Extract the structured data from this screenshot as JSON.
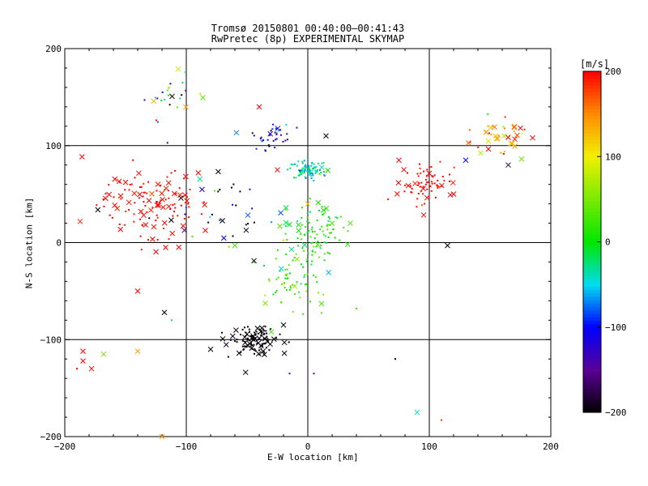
{
  "title": "Tromsø 20150801 00:40:00–00:41:43",
  "subtitle": "RwPretec (8p) EXPERIMENTAL SKYMAP",
  "chart_data": {
    "type": "scatter",
    "title": "Tromsø 20150801 00:40:00–00:41:43",
    "subtitle": "RwPretec (8p) EXPERIMENTAL SKYMAP",
    "xlabel": "E-W location [km]",
    "ylabel": "N-S location [km]",
    "xlim": [
      -200,
      200
    ],
    "ylim": [
      -200,
      200
    ],
    "xticks": [
      -200,
      -100,
      0,
      100,
      200
    ],
    "yticks": [
      -200,
      -100,
      0,
      100,
      200
    ],
    "grid_lines_x": [
      -100,
      0,
      100
    ],
    "grid_lines_y": [
      -100,
      0,
      100
    ],
    "colorbar": {
      "label": "[m/s]",
      "min": -200,
      "max": 200,
      "ticks": [
        200,
        100,
        0,
        -100,
        -200
      ],
      "colormap": "black-purple-blue-cyan-green-yellow-red"
    },
    "markers": {
      "x": "cross",
      "dot": "small point"
    },
    "clusters": [
      {
        "cx": -130,
        "cy": 40,
        "sx": 22,
        "sy": 18,
        "n_dots": 80,
        "n_x": 45,
        "v": 200,
        "vs": 8
      },
      {
        "cx": 100,
        "cy": 60,
        "sx": 10,
        "sy": 10,
        "n_dots": 60,
        "n_x": 12,
        "v": 200,
        "vs": 10
      },
      {
        "cx": 155,
        "cy": 110,
        "sx": 12,
        "sy": 10,
        "n_dots": 20,
        "n_x": 20,
        "v": 140,
        "vs": 50
      },
      {
        "cx": -45,
        "cy": -100,
        "sx": 9,
        "sy": 7,
        "n_dots": 90,
        "n_x": 30,
        "v": -200,
        "vs": 8
      },
      {
        "cx": 0,
        "cy": 75,
        "sx": 8,
        "sy": 5,
        "n_dots": 90,
        "n_x": 3,
        "v": -40,
        "vs": 25
      },
      {
        "cx": 5,
        "cy": 10,
        "sx": 12,
        "sy": 15,
        "n_dots": 90,
        "n_x": 12,
        "v": 5,
        "vs": 20
      },
      {
        "cx": -15,
        "cy": -40,
        "sx": 13,
        "sy": 15,
        "n_dots": 60,
        "n_x": 6,
        "v": 20,
        "vs": 30
      },
      {
        "cx": -30,
        "cy": 110,
        "sx": 8,
        "sy": 7,
        "n_dots": 35,
        "n_x": 3,
        "v": -130,
        "vs": 40
      },
      {
        "cx": -110,
        "cy": 150,
        "sx": 12,
        "sy": 15,
        "n_dots": 22,
        "n_x": 5,
        "v": -70,
        "vs": 120
      },
      {
        "cx": -60,
        "cy": 30,
        "sx": 25,
        "sy": 20,
        "n_dots": 25,
        "n_x": 15,
        "v": -150,
        "vs": 130
      }
    ],
    "scattered": [
      {
        "x": 115,
        "y": -3,
        "v": -200,
        "m": "x"
      },
      {
        "x": -118,
        "y": -72,
        "v": -200,
        "m": "x"
      },
      {
        "x": -185,
        "y": -112,
        "v": 200,
        "m": "x"
      },
      {
        "x": -185,
        "y": -122,
        "v": 200,
        "m": "x"
      },
      {
        "x": -178,
        "y": -130,
        "v": 200,
        "m": "x"
      },
      {
        "x": -168,
        "y": -115,
        "v": 50,
        "m": "x"
      },
      {
        "x": -140,
        "y": -112,
        "v": 140,
        "m": "x"
      },
      {
        "x": -140,
        "y": -50,
        "v": 200,
        "m": "x"
      },
      {
        "x": -117,
        "y": -5,
        "v": 200,
        "m": "x"
      },
      {
        "x": -120,
        "y": -200,
        "v": 140,
        "m": "x"
      },
      {
        "x": 90,
        "y": -175,
        "v": -40,
        "m": "x"
      },
      {
        "x": 72,
        "y": -120,
        "v": -200,
        "m": "dot"
      },
      {
        "x": 110,
        "y": -183,
        "v": 180,
        "m": "dot"
      },
      {
        "x": 15,
        "y": 110,
        "v": -200,
        "m": "x"
      },
      {
        "x": -25,
        "y": 75,
        "v": 200,
        "m": "x"
      },
      {
        "x": -40,
        "y": 140,
        "v": 200,
        "m": "x"
      },
      {
        "x": 130,
        "y": 85,
        "v": -100,
        "m": "x"
      },
      {
        "x": 75,
        "y": 85,
        "v": 200,
        "m": "x"
      },
      {
        "x": 120,
        "y": 50,
        "v": 200,
        "m": "x"
      },
      {
        "x": 0,
        "y": 40,
        "v": 120,
        "m": "x"
      },
      {
        "x": 35,
        "y": 20,
        "v": 30,
        "m": "x"
      },
      {
        "x": 20,
        "y": 20,
        "v": 30,
        "m": "x"
      },
      {
        "x": 185,
        "y": 108,
        "v": 200,
        "m": "x"
      },
      {
        "x": 175,
        "y": 118,
        "v": 200,
        "m": "x"
      },
      {
        "x": 165,
        "y": 80,
        "v": -180,
        "m": "x"
      },
      {
        "x": -190,
        "y": -130,
        "v": 200,
        "m": "dot"
      },
      {
        "x": -112,
        "y": -80,
        "v": -40,
        "m": "dot"
      },
      {
        "x": -15,
        "y": -135,
        "v": -150,
        "m": "dot"
      },
      {
        "x": 5,
        "y": -135,
        "v": -150,
        "m": "dot"
      },
      {
        "x": 40,
        "y": -68,
        "v": 20,
        "m": "dot"
      },
      {
        "x": -80,
        "y": -110,
        "v": -200,
        "m": "x"
      },
      {
        "x": -20,
        "y": -85,
        "v": -200,
        "m": "x"
      },
      {
        "x": -30,
        "y": -92,
        "v": 20,
        "m": "x"
      }
    ],
    "legend": "none"
  }
}
